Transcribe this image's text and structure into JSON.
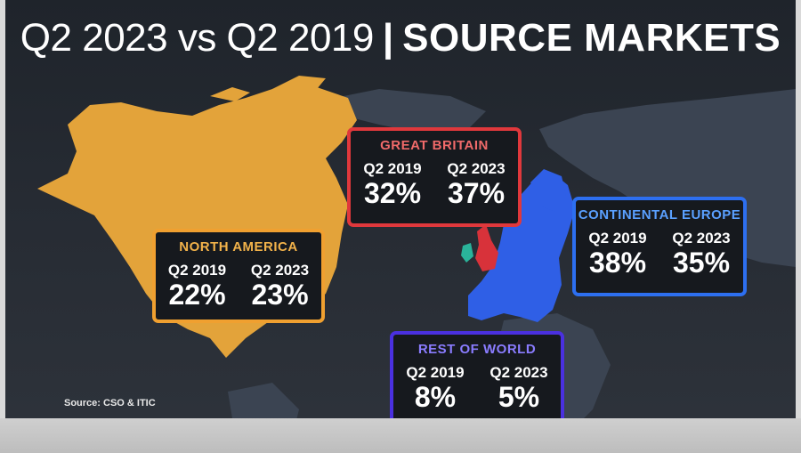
{
  "title": {
    "light": "Q2 2023 vs Q2 2019",
    "separator": "|",
    "bold": "SOURCE MARKETS"
  },
  "regions": {
    "great_britain": {
      "name": "GREAT BRITAIN",
      "label_2019": "Q2 2019",
      "value_2019": "32%",
      "label_2023": "Q2 2023",
      "value_2023": "37%",
      "color": "#e0383c"
    },
    "north_america": {
      "name": "NORTH AMERICA",
      "label_2019": "Q2 2019",
      "value_2019": "22%",
      "label_2023": "Q2 2023",
      "value_2023": "23%",
      "color": "#f0a030"
    },
    "continental_europe": {
      "name": "CONTINENTAL EUROPE",
      "label_2019": "Q2 2019",
      "value_2019": "38%",
      "label_2023": "Q2 2023",
      "value_2023": "35%",
      "color": "#2d6ff0"
    },
    "rest_of_world": {
      "name": "REST OF WORLD",
      "label_2019": "Q2 2019",
      "value_2019": "8%",
      "label_2023": "Q2 2023",
      "value_2023": "5%",
      "color": "#4a30e0"
    }
  },
  "source": "Source: CSO & ITIC",
  "colors": {
    "north_america_land": "#e3a33a",
    "europe_land": "#2f5fe6",
    "britain_land": "#d8323a",
    "ireland_land": "#2ab39a",
    "other_land": "#3b4452",
    "background": "#22272e"
  }
}
